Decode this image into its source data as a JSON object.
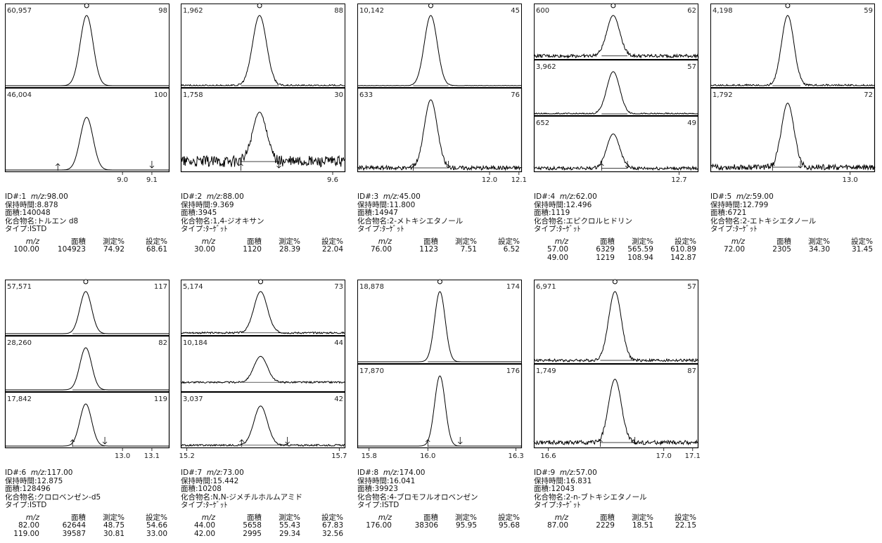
{
  "labels": {
    "id": "ID#:",
    "mz": "m/z:",
    "rt": "保持時間:",
    "area": "面積:",
    "compound": "化合物名:",
    "type": "タイプ:"
  },
  "table_header": [
    "m/z",
    "面積",
    "測定%",
    "設定%"
  ],
  "chart_data": [
    {
      "type": "chromatogram",
      "id": "1",
      "mz": "98.00",
      "rt": "8.878",
      "area": "140048",
      "compound": "トルエン d8",
      "compound_type": "ISTD",
      "peak_rt": 8.878,
      "peak_width": 0.022,
      "xlim": [
        8.6,
        9.16
      ],
      "ticks": [
        {
          "v": 9.0,
          "l": "9.0"
        },
        {
          "v": 9.1,
          "l": "9.1"
        }
      ],
      "markers": [
        8.78,
        9.1
      ],
      "traces": [
        {
          "max": "60,957",
          "ion": "98",
          "rel": 1.0,
          "noise": 0.0,
          "base": 0.0
        },
        {
          "max": "46,004",
          "ion": "100",
          "rel": 0.75,
          "noise": 0.0,
          "base": 0.0
        }
      ],
      "rows": [
        [
          "100.00",
          "104923",
          "74.92",
          "68.61"
        ]
      ]
    },
    {
      "type": "chromatogram",
      "id": "2",
      "mz": "88.00",
      "rt": "9.369",
      "area": "3945",
      "compound": "1,4-ジオキサン",
      "compound_type": "ﾀｰｹﾞｯﾄ",
      "peak_rt": 9.369,
      "peak_width": 0.022,
      "xlim": [
        9.12,
        9.64
      ],
      "ticks": [
        {
          "v": 9.6,
          "l": "9.6"
        }
      ],
      "markers": [
        9.31,
        9.43
      ],
      "traces": [
        {
          "max": "1,962",
          "ion": "88",
          "rel": 1.0,
          "noise": 0.015,
          "base": 0.0
        },
        {
          "max": "1,758",
          "ion": "30",
          "rel": 0.8,
          "noise": 0.08,
          "base": 0.12
        }
      ],
      "rows": [
        [
          "30.00",
          "1120",
          "28.39",
          "22.04"
        ]
      ]
    },
    {
      "type": "chromatogram",
      "id": "3",
      "mz": "45.00",
      "rt": "11.800",
      "area": "14947",
      "compound": "2-メトキシエタノール",
      "compound_type": "ﾀｰｹﾞｯﾄ",
      "peak_rt": 11.8,
      "peak_width": 0.022,
      "xlim": [
        11.55,
        12.11
      ],
      "ticks": [
        {
          "v": 12.0,
          "l": "12.0"
        },
        {
          "v": 12.1,
          "l": "12.1"
        }
      ],
      "markers": [
        11.74,
        11.86
      ],
      "traces": [
        {
          "max": "10,142",
          "ion": "45",
          "rel": 1.0,
          "noise": 0.004,
          "base": 0.0
        },
        {
          "max": "633",
          "ion": "76",
          "rel": 1.0,
          "noise": 0.03,
          "base": 0.03
        }
      ],
      "rows": [
        [
          "76.00",
          "1123",
          "7.51",
          "6.52"
        ]
      ]
    },
    {
      "type": "chromatogram",
      "id": "4",
      "mz": "62.00",
      "rt": "12.496",
      "area": "1119",
      "compound": "エピクロルヒドリン",
      "compound_type": "ﾀｰｹﾞｯﾄ",
      "peak_rt": 12.496,
      "peak_width": 0.02,
      "xlim": [
        12.25,
        12.76
      ],
      "ticks": [
        {
          "v": 12.7,
          "l": "12.7"
        }
      ],
      "markers": [
        12.46,
        12.54
      ],
      "traces": [
        {
          "max": "600",
          "ion": "62",
          "rel": 1.0,
          "noise": 0.04,
          "base": 0.04
        },
        {
          "max": "3,962",
          "ion": "57",
          "rel": 1.0,
          "noise": 0.02,
          "base": 0.0
        },
        {
          "max": "652",
          "ion": "49",
          "rel": 0.85,
          "noise": 0.04,
          "base": 0.04
        }
      ],
      "rows": [
        [
          "57.00",
          "6329",
          "565.59",
          "610.89"
        ],
        [
          "49.00",
          "1219",
          "108.94",
          "142.87"
        ]
      ]
    },
    {
      "type": "chromatogram",
      "id": "5",
      "mz": "59.00",
      "rt": "12.799",
      "area": "6721",
      "compound": "2-エトキシエタノール",
      "compound_type": "ﾀｰｹﾞｯﾄ",
      "peak_rt": 12.799,
      "peak_width": 0.02,
      "xlim": [
        12.55,
        13.08
      ],
      "ticks": [
        {
          "v": 13.0,
          "l": "13.0"
        }
      ],
      "markers": [
        12.75,
        12.84
      ],
      "traces": [
        {
          "max": "4,198",
          "ion": "59",
          "rel": 1.0,
          "noise": 0.02,
          "base": 0.0
        },
        {
          "max": "1,792",
          "ion": "72",
          "rel": 0.95,
          "noise": 0.04,
          "base": 0.04
        }
      ],
      "rows": [
        [
          "72.00",
          "2305",
          "34.30",
          "31.45"
        ]
      ]
    },
    {
      "type": "chromatogram",
      "id": "6",
      "mz": "117.00",
      "rt": "12.875",
      "area": "128496",
      "compound": "クロロベンゼン-d5",
      "compound_type": "ISTD",
      "peak_rt": 12.875,
      "peak_width": 0.02,
      "xlim": [
        12.6,
        13.16
      ],
      "ticks": [
        {
          "v": 13.0,
          "l": "13.0"
        },
        {
          "v": 13.1,
          "l": "13.1"
        }
      ],
      "markers": [
        12.83,
        12.94
      ],
      "traces": [
        {
          "max": "57,571",
          "ion": "117",
          "rel": 1.0,
          "noise": 0.0,
          "base": 0.0
        },
        {
          "max": "28,260",
          "ion": "82",
          "rel": 1.0,
          "noise": 0.0,
          "base": 0.0
        },
        {
          "max": "17,842",
          "ion": "119",
          "rel": 1.0,
          "noise": 0.0,
          "base": 0.0
        }
      ],
      "rows": [
        [
          "82.00",
          "62644",
          "48.75",
          "54.66"
        ],
        [
          "119.00",
          "39587",
          "30.81",
          "33.00"
        ]
      ]
    },
    {
      "type": "chromatogram",
      "id": "7",
      "mz": "73.00",
      "rt": "15.442",
      "area": "10208",
      "compound": "N,N-ジメチルホルムアミド",
      "compound_type": "ﾀｰｹﾞｯﾄ",
      "peak_rt": 15.442,
      "peak_width": 0.022,
      "xlim": [
        15.18,
        15.72
      ],
      "ticks": [
        {
          "v": 15.2,
          "l": "15.2"
        },
        {
          "v": 15.7,
          "l": "15.7"
        }
      ],
      "markers": [
        15.38,
        15.53
      ],
      "traces": [
        {
          "max": "5,174",
          "ion": "73",
          "rel": 1.0,
          "noise": 0.02,
          "base": 0.02
        },
        {
          "max": "10,184",
          "ion": "44",
          "rel": 0.75,
          "noise": 0.02,
          "base": 0.18
        },
        {
          "max": "3,037",
          "ion": "42",
          "rel": 0.95,
          "noise": 0.02,
          "base": 0.02
        }
      ],
      "rows": [
        [
          "44.00",
          "5658",
          "55.43",
          "67.83"
        ],
        [
          "42.00",
          "2995",
          "29.34",
          "32.56"
        ]
      ]
    },
    {
      "type": "chromatogram",
      "id": "8",
      "mz": "174.00",
      "rt": "16.041",
      "area": "39923",
      "compound": "4-ブロモフルオロベンゼン",
      "compound_type": "ISTD",
      "peak_rt": 16.041,
      "peak_width": 0.018,
      "xlim": [
        15.76,
        16.32
      ],
      "ticks": [
        {
          "v": 15.8,
          "l": "15.8"
        },
        {
          "v": 16.0,
          "l": "16.0"
        },
        {
          "v": 16.3,
          "l": "16.3"
        }
      ],
      "markers": [
        16.0,
        16.11
      ],
      "traces": [
        {
          "max": "18,878",
          "ion": "174",
          "rel": 1.0,
          "noise": 0.0,
          "base": 0.0
        },
        {
          "max": "17,870",
          "ion": "176",
          "rel": 1.0,
          "noise": 0.0,
          "base": 0.0
        }
      ],
      "rows": [
        [
          "176.00",
          "38306",
          "95.95",
          "95.68"
        ]
      ]
    },
    {
      "type": "chromatogram",
      "id": "9",
      "mz": "57.00",
      "rt": "16.831",
      "area": "12043",
      "compound": "2-n-ブトキシエタノール",
      "compound_type": "ﾀｰｹﾞｯﾄ",
      "peak_rt": 16.831,
      "peak_width": 0.022,
      "xlim": [
        16.55,
        17.12
      ],
      "ticks": [
        {
          "v": 16.6,
          "l": "16.6"
        },
        {
          "v": 17.0,
          "l": "17.0"
        },
        {
          "v": 17.1,
          "l": "17.1"
        }
      ],
      "markers": [
        16.78,
        16.9
      ],
      "traces": [
        {
          "max": "6,971",
          "ion": "57",
          "rel": 1.0,
          "noise": 0.02,
          "base": 0.02
        },
        {
          "max": "1,749",
          "ion": "87",
          "rel": 0.95,
          "noise": 0.03,
          "base": 0.05
        }
      ],
      "rows": [
        [
          "87.00",
          "2229",
          "18.51",
          "22.15"
        ]
      ]
    }
  ]
}
